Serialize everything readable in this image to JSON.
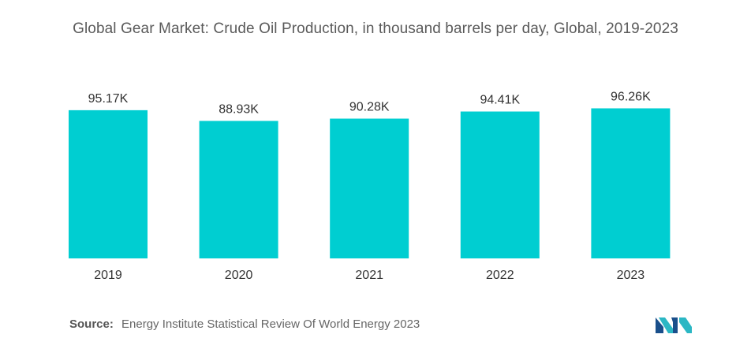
{
  "title": "Global Gear Market: Crude Oil Production, in thousand barrels per day, Global, 2019-2023",
  "source": {
    "label": "Source:",
    "text": "Energy Institute Statistical Review Of World Energy 2023"
  },
  "logo": {
    "icon": "mordor-intelligence-logo",
    "colors": [
      "#1a4f8b",
      "#2bb7c4"
    ]
  },
  "colors": {
    "bar": "#00CED1"
  },
  "chart_data": {
    "type": "bar",
    "title": "Global Gear Market: Crude Oil Production, in thousand barrels per day, Global, 2019-2023",
    "categories": [
      "2019",
      "2020",
      "2021",
      "2022",
      "2023"
    ],
    "values": [
      95.17,
      88.93,
      90.28,
      94.41,
      96.26
    ],
    "data_labels": [
      "95.17K",
      "88.93K",
      "90.28K",
      "94.41K",
      "96.26K"
    ],
    "ylim": [
      0,
      100
    ],
    "grid": false,
    "legend": "none",
    "xlabel": "",
    "ylabel": ""
  }
}
